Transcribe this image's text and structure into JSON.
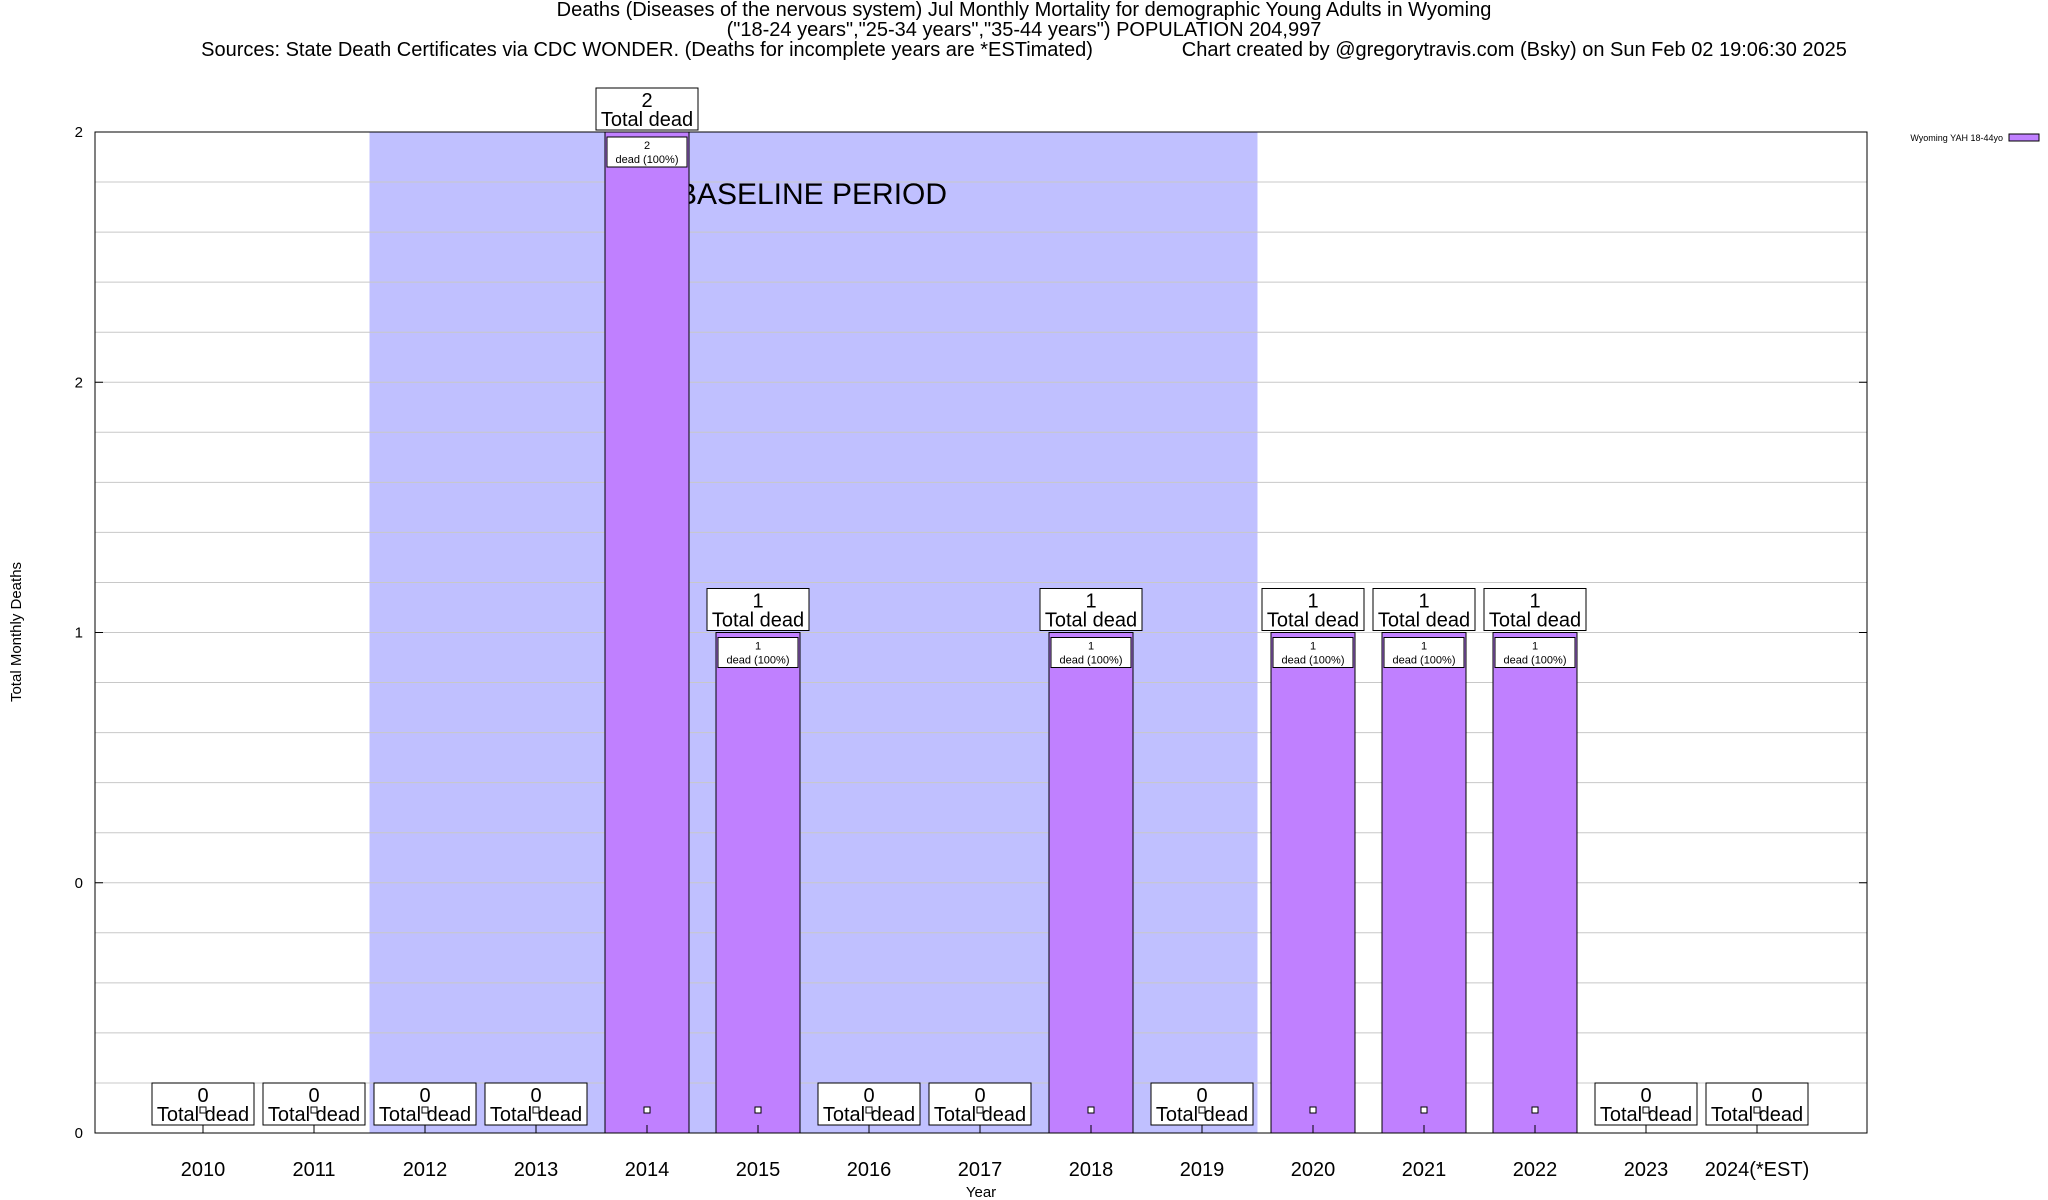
{
  "title_lines": [
    "Deaths (Diseases of the nervous system) Jul Monthly Mortality for demographic Young Adults in Wyoming",
    "(\"18-24 years\",\"25-34 years\",\"35-44 years\") POPULATION 204,997",
    "Sources: State Death Certificates via CDC WONDER. (Deaths for incomplete years are *ESTimated)                Chart created by @gregorytravis.com (Bsky) on Sun Feb 02 19:06:30 2025"
  ],
  "chart_data": {
    "type": "bar",
    "categories": [
      "2010",
      "2011",
      "2012",
      "2013",
      "2014",
      "2015",
      "2016",
      "2017",
      "2018",
      "2019",
      "2020",
      "2021",
      "2022",
      "2023",
      "2024(*EST)"
    ],
    "series": [
      {
        "name": "Wyoming YAH 18-44yo",
        "values": [
          0,
          0,
          0,
          0,
          2,
          1,
          0,
          0,
          1,
          0,
          1,
          1,
          1,
          0,
          0
        ]
      }
    ],
    "total_label_suffix": "Total dead",
    "inner_label_suffix": "dead (100%)",
    "xlabel": "Year",
    "ylabel": "Total Monthly Deaths",
    "ylim": [
      0,
      2
    ],
    "y_tick_labels": [
      "0",
      "0",
      "1",
      "2",
      "2"
    ],
    "baseline_period": {
      "label": "BASELINE PERIOD",
      "from": "2012",
      "to": "2019"
    },
    "legend_position": "top-right",
    "grid": true,
    "colors": {
      "bar": "#c080ff",
      "baseline": "#c0c0ff",
      "grid": "#c8c8c8",
      "legend_swatch": "#c080ff"
    }
  }
}
